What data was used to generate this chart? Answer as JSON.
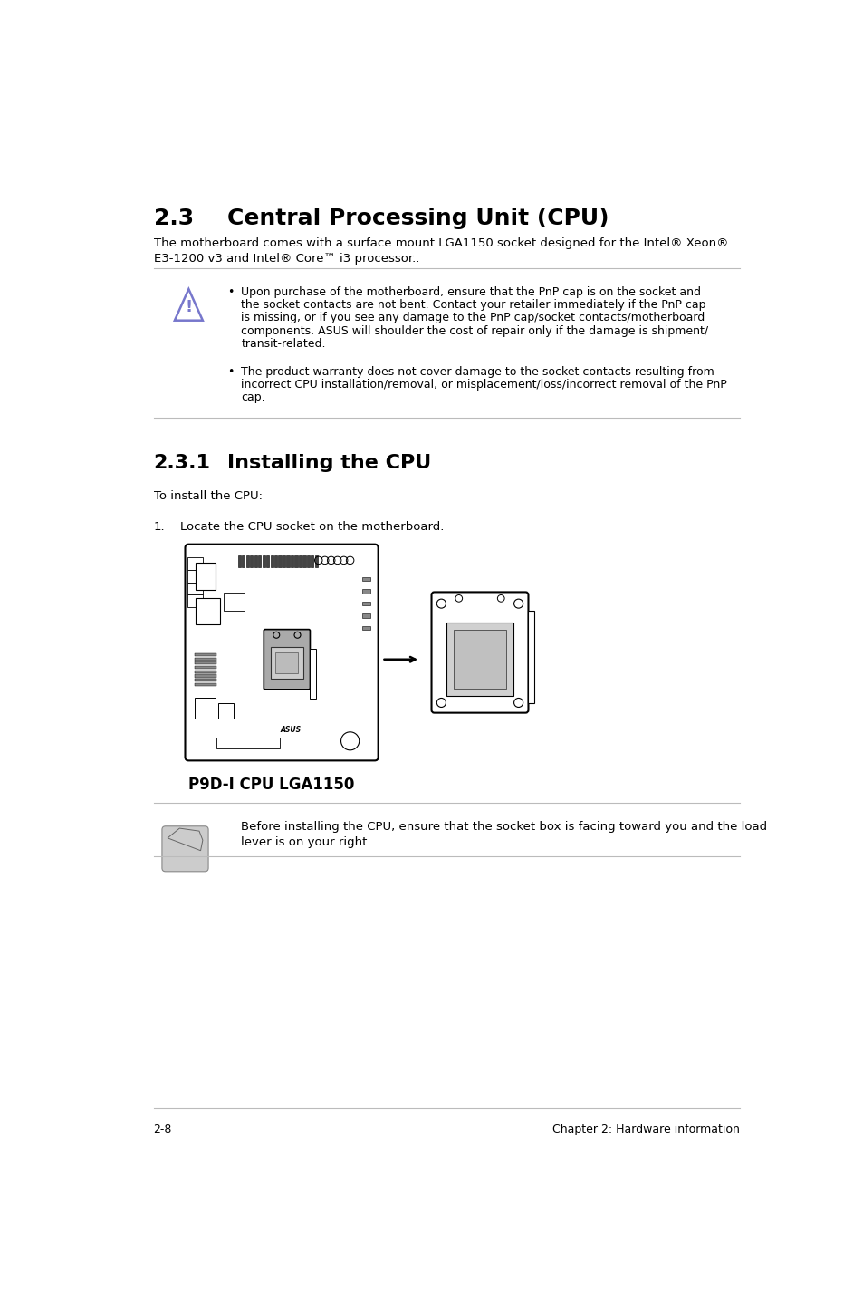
{
  "bg_color": "#ffffff",
  "text_color": "#000000",
  "section_num": "2.3",
  "section_title": "Central Processing Unit (CPU)",
  "intro_line1": "The motherboard comes with a surface mount LGA1150 socket designed for the Intel® Xeon®",
  "intro_line2": "E3-1200 v3 and Intel® Core™ i3 processor..",
  "warn_bullet1_lines": [
    "Upon purchase of the motherboard, ensure that the PnP cap is on the socket and",
    "the socket contacts are not bent. Contact your retailer immediately if the PnP cap",
    "is missing, or if you see any damage to the PnP cap/socket contacts/motherboard",
    "components. ASUS will shoulder the cost of repair only if the damage is shipment/",
    "transit-related."
  ],
  "warn_bullet2_lines": [
    "The product warranty does not cover damage to the socket contacts resulting from",
    "incorrect CPU installation/removal, or misplacement/loss/incorrect removal of the PnP",
    "cap."
  ],
  "sub_num": "2.3.1",
  "sub_title": "Installing the CPU",
  "to_install": "To install the CPU:",
  "step1_num": "1.",
  "step1_text": "Locate the CPU socket on the motherboard.",
  "label": "P9D-I CPU LGA1150",
  "note_line1": "Before installing the CPU, ensure that the socket box is facing toward you and the load",
  "note_line2": "lever is on your right.",
  "footer_left": "2-8",
  "footer_right": "Chapter 2: Hardware information",
  "divider_color": "#bbbbbb",
  "warn_icon_color": "#7777cc"
}
